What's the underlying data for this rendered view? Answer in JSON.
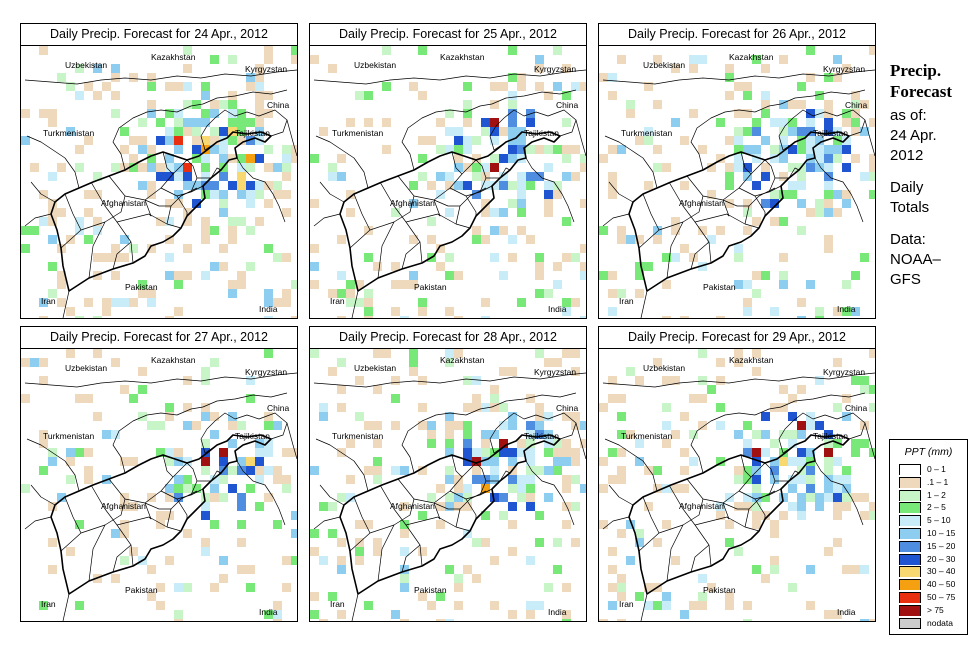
{
  "panels": [
    {
      "title_prefix": "Daily Precip. Forecast for",
      "date": "24 Apr., 2012",
      "seed": 11,
      "density": 0.55,
      "hot": 3
    },
    {
      "title_prefix": "Daily Precip. Forecast for",
      "date": "25 Apr., 2012",
      "seed": 23,
      "density": 0.42,
      "hot": 1
    },
    {
      "title_prefix": "Daily Precip. Forecast for",
      "date": "26 Apr., 2012",
      "seed": 37,
      "density": 0.45,
      "hot": 0
    },
    {
      "title_prefix": "Daily Precip. Forecast for",
      "date": "27 Apr., 2012",
      "seed": 41,
      "density": 0.4,
      "hot": 2
    },
    {
      "title_prefix": "Daily Precip. Forecast for",
      "date": "28 Apr., 2012",
      "seed": 53,
      "density": 0.45,
      "hot": 2
    },
    {
      "title_prefix": "Daily Precip. Forecast for",
      "date": "29 Apr., 2012",
      "seed": 67,
      "density": 0.4,
      "hot": 3
    }
  ],
  "map_labels": {
    "kazakhstan": "Kazakhstan",
    "uzbekistan": "Uzbekistan",
    "kyrgyzstan": "Kyrgyzstan",
    "china": "China",
    "turkmenistan": "Turkmenistan",
    "tajikistan": "Tajikistan",
    "afghanistan": "Afghanistan",
    "pakistan": "Pakistan",
    "iran": "Iran",
    "india": "India"
  },
  "sidebar": {
    "title_line1": "Precip.",
    "title_line2": "Forecast",
    "asof_label": "as of:",
    "asof_date1": "24 Apr.",
    "asof_date2": "2012",
    "totals1": "Daily",
    "totals2": "Totals",
    "data1": "Data:",
    "data2": "NOAA–",
    "data3": "GFS"
  },
  "legend": {
    "title": "PPT (mm)",
    "items": [
      {
        "label": "0 – 1",
        "color": "#ffffff"
      },
      {
        "label": ".1 – 1",
        "color": "#eed9bd"
      },
      {
        "label": "1 – 2",
        "color": "#c8f5c8"
      },
      {
        "label": "2 – 5",
        "color": "#78e878"
      },
      {
        "label": "5 – 10",
        "color": "#c8ecf8"
      },
      {
        "label": "10 – 15",
        "color": "#8ccdf0"
      },
      {
        "label": "15 – 20",
        "color": "#4f8de0"
      },
      {
        "label": "20 – 30",
        "color": "#1f55d0"
      },
      {
        "label": "30 – 40",
        "color": "#f8d870"
      },
      {
        "label": "40 – 50",
        "color": "#f4a010"
      },
      {
        "label": "50 – 75",
        "color": "#e83010"
      },
      {
        "label": "> 75",
        "color": "#a01010"
      },
      {
        "label": "nodata",
        "color": "#cccccc"
      }
    ]
  }
}
